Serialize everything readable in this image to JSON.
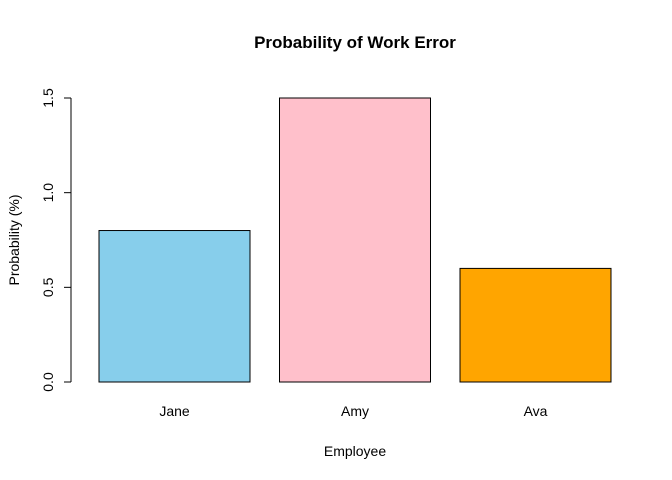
{
  "chart_data": {
    "type": "bar",
    "title": "Probability of Work Error",
    "xlabel": "Employee",
    "ylabel": "Probability (%)",
    "categories": [
      "Jane",
      "Amy",
      "Ava"
    ],
    "values": [
      0.8,
      1.5,
      0.6
    ],
    "colors": [
      "#87ceeb",
      "#ffc0cb",
      "#ffa500"
    ],
    "ylim": [
      0,
      1.5
    ],
    "yticks": [
      0.0,
      0.5,
      1.0,
      1.5
    ],
    "ytick_labels": [
      "0.0",
      "0.5",
      "1.0",
      "1.5"
    ],
    "grid": false,
    "legend": "none"
  }
}
